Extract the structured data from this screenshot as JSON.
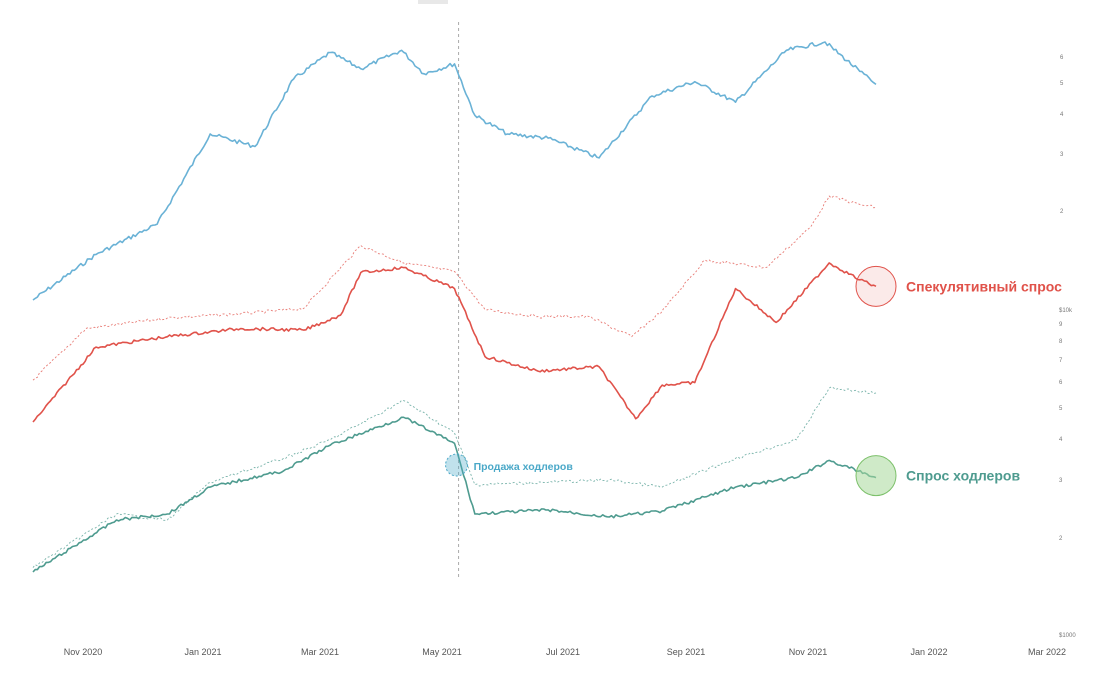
{
  "chart_data": {
    "type": "line",
    "x_axis": {
      "type": "date",
      "ticks": [
        "Nov 2020",
        "Jan 2021",
        "Mar 2021",
        "May 2021",
        "Jul 2021",
        "Sep 2021",
        "Nov 2021",
        "Jan 2022",
        "Mar 2022"
      ]
    },
    "y_axis_right": {
      "scale": "log",
      "price_ticks": [
        "6",
        "5",
        "4",
        "3",
        "2"
      ],
      "demand_ticks": [
        "$10k",
        "9",
        "8",
        "7",
        "6",
        "5",
        "4",
        "3",
        "2",
        "$1000"
      ]
    },
    "colors": {
      "price": "#6ab2d6",
      "speculative": "#e0524a",
      "hodler": "#4e9b8f",
      "marker_line": "#aaaaaa",
      "hodler_label": "#4aa8c8"
    },
    "series": [
      {
        "key": "price",
        "style": "solid",
        "points": [
          [
            "2020-10-15",
            1.0
          ],
          [
            "2020-11-15",
            1.4
          ],
          [
            "2020-12-15",
            1.75
          ],
          [
            "2021-01-10",
            3.4
          ],
          [
            "2021-02-01",
            3.1
          ],
          [
            "2021-02-20",
            5.1
          ],
          [
            "2021-03-10",
            6.2
          ],
          [
            "2021-03-25",
            5.5
          ],
          [
            "2021-04-14",
            6.3
          ],
          [
            "2021-04-25",
            5.3
          ],
          [
            "2021-05-10",
            5.7
          ],
          [
            "2021-05-20",
            3.9
          ],
          [
            "2021-06-05",
            3.4
          ],
          [
            "2021-06-25",
            3.3
          ],
          [
            "2021-07-20",
            2.85
          ],
          [
            "2021-08-15",
            4.5
          ],
          [
            "2021-09-05",
            5.0
          ],
          [
            "2021-09-25",
            4.3
          ],
          [
            "2021-10-20",
            6.3
          ],
          [
            "2021-11-08",
            6.7
          ],
          [
            "2021-11-25",
            5.4
          ],
          [
            "2021-12-03",
            4.9
          ]
        ]
      },
      {
        "key": "speculative_dashed",
        "style": "dashed",
        "points": [
          [
            "2020-10-15",
            5.3
          ],
          [
            "2020-11-10",
            8.0
          ],
          [
            "2020-12-20",
            8.7
          ],
          [
            "2021-01-25",
            9.0
          ],
          [
            "2021-02-25",
            9.4
          ],
          [
            "2021-03-25",
            15.5
          ],
          [
            "2021-04-15",
            13.5
          ],
          [
            "2021-05-10",
            12.6
          ],
          [
            "2021-05-25",
            9.3
          ],
          [
            "2021-06-20",
            8.8
          ],
          [
            "2021-07-15",
            8.8
          ],
          [
            "2021-08-05",
            7.5
          ],
          [
            "2021-08-20",
            9.2
          ],
          [
            "2021-09-10",
            13.8
          ],
          [
            "2021-10-10",
            13.0
          ],
          [
            "2021-11-01",
            18.0
          ],
          [
            "2021-11-10",
            23.0
          ],
          [
            "2021-11-25",
            21.5
          ],
          [
            "2021-12-03",
            21.0
          ]
        ]
      },
      {
        "key": "speculative",
        "style": "solid",
        "points": [
          [
            "2020-10-15",
            3.8
          ],
          [
            "2020-11-15",
            6.9
          ],
          [
            "2020-12-20",
            7.5
          ],
          [
            "2021-01-25",
            8.0
          ],
          [
            "2021-02-25",
            7.9
          ],
          [
            "2021-03-15",
            8.9
          ],
          [
            "2021-03-25",
            12.5
          ],
          [
            "2021-04-15",
            13.0
          ],
          [
            "2021-05-10",
            11.0
          ],
          [
            "2021-05-25",
            6.4
          ],
          [
            "2021-06-20",
            5.7
          ],
          [
            "2021-07-20",
            5.9
          ],
          [
            "2021-08-07",
            3.9
          ],
          [
            "2021-08-20",
            5.1
          ],
          [
            "2021-09-05",
            5.2
          ],
          [
            "2021-09-25",
            11.0
          ],
          [
            "2021-10-15",
            8.4
          ],
          [
            "2021-11-10",
            13.5
          ],
          [
            "2021-11-25",
            11.8
          ],
          [
            "2021-12-03",
            11.2
          ]
        ]
      },
      {
        "key": "hodler_dashed",
        "style": "dashed",
        "points": [
          [
            "2020-10-15",
            1.6
          ],
          [
            "2020-11-25",
            2.35
          ],
          [
            "2020-12-20",
            2.25
          ],
          [
            "2021-01-10",
            2.95
          ],
          [
            "2021-02-15",
            3.5
          ],
          [
            "2021-03-10",
            4.0
          ],
          [
            "2021-04-15",
            5.3
          ],
          [
            "2021-05-10",
            4.2
          ],
          [
            "2021-05-20",
            2.9
          ],
          [
            "2021-06-25",
            2.95
          ],
          [
            "2021-07-25",
            3.0
          ],
          [
            "2021-08-20",
            2.85
          ],
          [
            "2021-09-25",
            3.5
          ],
          [
            "2021-10-25",
            4.0
          ],
          [
            "2021-11-10",
            5.8
          ],
          [
            "2021-12-03",
            5.6
          ]
        ]
      },
      {
        "key": "hodler",
        "style": "solid",
        "points": [
          [
            "2020-10-15",
            1.55
          ],
          [
            "2020-11-25",
            2.25
          ],
          [
            "2020-12-20",
            2.35
          ],
          [
            "2021-01-10",
            2.85
          ],
          [
            "2021-02-15",
            3.2
          ],
          [
            "2021-03-10",
            3.85
          ],
          [
            "2021-04-15",
            4.7
          ],
          [
            "2021-05-10",
            3.9
          ],
          [
            "2021-05-20",
            2.35
          ],
          [
            "2021-06-25",
            2.42
          ],
          [
            "2021-07-25",
            2.3
          ],
          [
            "2021-08-20",
            2.4
          ],
          [
            "2021-09-25",
            2.85
          ],
          [
            "2021-10-25",
            3.05
          ],
          [
            "2021-11-10",
            3.45
          ],
          [
            "2021-12-03",
            3.05
          ]
        ]
      }
    ],
    "marker": {
      "date": "2021-05-12",
      "label": "Продажа ходлеров"
    },
    "annotations": [
      {
        "label": "Спекулятивный спрос",
        "series": "speculative"
      },
      {
        "label": "Спрос ходлеров",
        "series": "hodler"
      }
    ]
  }
}
